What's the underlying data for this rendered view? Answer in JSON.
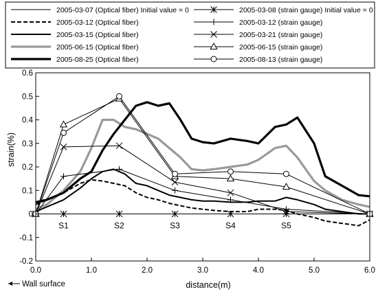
{
  "chart_data": {
    "type": "line",
    "xlabel": "distance(m)",
    "ylabel": "strain(%)",
    "xlim": [
      0.0,
      6.0
    ],
    "ylim": [
      -0.2,
      0.6
    ],
    "xticks": [
      "0.0",
      "1.0",
      "2.0",
      "3.0",
      "4.0",
      "5.0",
      "6.0"
    ],
    "yticks": [
      "-0.2",
      "-0.1",
      "0",
      "0.1",
      "0.2",
      "0.3",
      "0.4",
      "0.5",
      "0.6"
    ],
    "grid": false,
    "legend_position": "top",
    "sensor_labels": [
      {
        "label": "S1",
        "x": 0.5
      },
      {
        "label": "S2",
        "x": 1.5
      },
      {
        "label": "S3",
        "x": 2.5
      },
      {
        "label": "S4",
        "x": 3.5
      },
      {
        "label": "S5",
        "x": 4.5
      }
    ],
    "annotation": "Wall surface",
    "series": [
      {
        "name": "2005-03-07 (Optical fiber) Initial value = 0",
        "style": "thin",
        "color": "#000000",
        "marker": "none",
        "x": [
          0,
          6
        ],
        "y": [
          0,
          0
        ]
      },
      {
        "name": "2005-03-12 (Optical fiber)",
        "style": "dashed",
        "color": "#000000",
        "marker": "none",
        "x": [
          0,
          0.2,
          0.5,
          0.8,
          1.0,
          1.2,
          1.4,
          1.6,
          1.8,
          2.0,
          2.2,
          2.4,
          2.6,
          2.8,
          3.0,
          3.2,
          3.5,
          3.8,
          4.0,
          4.3,
          4.5,
          4.7,
          5.0,
          5.2,
          5.5,
          5.8,
          6.0
        ],
        "y": [
          0.04,
          0.06,
          0.09,
          0.13,
          0.145,
          0.14,
          0.13,
          0.12,
          0.09,
          0.07,
          0.06,
          0.045,
          0.035,
          0.025,
          0.02,
          0.015,
          0.01,
          0.01,
          0.02,
          0.02,
          0.015,
          0.0,
          -0.015,
          -0.03,
          -0.04,
          -0.05,
          -0.025
        ]
      },
      {
        "name": "2005-03-15 (Optical fiber)",
        "style": "medium",
        "color": "#000000",
        "marker": "none",
        "x": [
          0,
          0.2,
          0.5,
          0.8,
          1.0,
          1.2,
          1.4,
          1.6,
          1.8,
          2.0,
          2.2,
          2.4,
          2.6,
          2.8,
          3.0,
          3.2,
          3.5,
          3.8,
          4.0,
          4.3,
          4.5,
          4.7,
          5.0,
          5.2,
          5.5,
          5.8,
          6.0
        ],
        "y": [
          0.01,
          0.03,
          0.06,
          0.11,
          0.15,
          0.18,
          0.19,
          0.17,
          0.13,
          0.12,
          0.1,
          0.08,
          0.07,
          0.06,
          0.055,
          0.055,
          0.05,
          0.05,
          0.055,
          0.055,
          0.07,
          0.06,
          0.04,
          0.02,
          0.01,
          0.0,
          0.0
        ]
      },
      {
        "name": "2005-06-15 (Optical fiber)",
        "style": "thick-gray",
        "color": "#999999",
        "marker": "none",
        "x": [
          0,
          0.2,
          0.5,
          0.8,
          1.0,
          1.2,
          1.4,
          1.6,
          1.8,
          2.0,
          2.2,
          2.4,
          2.6,
          2.8,
          3.0,
          3.2,
          3.5,
          3.8,
          4.0,
          4.3,
          4.5,
          4.7,
          5.0,
          5.2,
          5.5,
          5.8,
          6.0
        ],
        "y": [
          0.02,
          0.04,
          0.1,
          0.18,
          0.28,
          0.4,
          0.4,
          0.37,
          0.36,
          0.34,
          0.32,
          0.28,
          0.24,
          0.19,
          0.185,
          0.19,
          0.2,
          0.21,
          0.23,
          0.28,
          0.29,
          0.24,
          0.14,
          0.1,
          0.06,
          0.04,
          0.03
        ]
      },
      {
        "name": "2005-08-25 (Optical fiber)",
        "style": "thickest",
        "color": "#000000",
        "marker": "none",
        "x": [
          0,
          0.2,
          0.5,
          0.8,
          1.0,
          1.2,
          1.4,
          1.6,
          1.8,
          2.0,
          2.2,
          2.4,
          2.6,
          2.8,
          3.0,
          3.2,
          3.5,
          3.8,
          4.0,
          4.3,
          4.5,
          4.7,
          5.0,
          5.2,
          5.5,
          5.8,
          6.0
        ],
        "y": [
          0.05,
          0.06,
          0.09,
          0.15,
          0.18,
          0.27,
          0.34,
          0.4,
          0.46,
          0.475,
          0.46,
          0.47,
          0.4,
          0.32,
          0.305,
          0.3,
          0.32,
          0.31,
          0.3,
          0.37,
          0.38,
          0.41,
          0.3,
          0.16,
          0.12,
          0.08,
          0.075
        ]
      },
      {
        "name": "2005-03-08 (strain gauge) Initial value = 0",
        "style": "thin",
        "color": "#000000",
        "marker": "asterisk",
        "x": [
          0,
          0.5,
          1.5,
          2.5,
          3.5,
          4.5,
          6.0
        ],
        "y": [
          0,
          0,
          0,
          0,
          0,
          0,
          0
        ]
      },
      {
        "name": "2005-03-12 (strain gauge)",
        "style": "thin",
        "color": "#000000",
        "marker": "plus",
        "x": [
          0,
          0.5,
          1.5,
          2.5,
          3.5,
          4.5,
          6.0
        ],
        "y": [
          0,
          0.16,
          0.19,
          0.1,
          0.06,
          0.02,
          0
        ]
      },
      {
        "name": "2005-03-21 (strain gauge)",
        "style": "thin",
        "color": "#000000",
        "marker": "x",
        "x": [
          0,
          0.5,
          1.5,
          2.5,
          3.5,
          4.5,
          6.0
        ],
        "y": [
          0,
          0.285,
          0.29,
          0.135,
          0.09,
          0.01,
          0
        ]
      },
      {
        "name": "2005-06-15 (strain gauge)",
        "style": "thin",
        "color": "#000000",
        "marker": "triangle",
        "x": [
          0,
          0.5,
          1.5,
          2.5,
          3.5,
          4.5,
          6.0
        ],
        "y": [
          0,
          0.38,
          0.49,
          0.16,
          0.15,
          0.115,
          0
        ]
      },
      {
        "name": "2005-08-13 (strain gauge)",
        "style": "thin",
        "color": "#000000",
        "marker": "circle",
        "x": [
          0,
          0.5,
          1.5,
          2.5,
          3.5,
          4.5,
          6.0
        ],
        "y": [
          0,
          0.345,
          0.5,
          0.17,
          0.18,
          0.17,
          0
        ]
      }
    ]
  }
}
